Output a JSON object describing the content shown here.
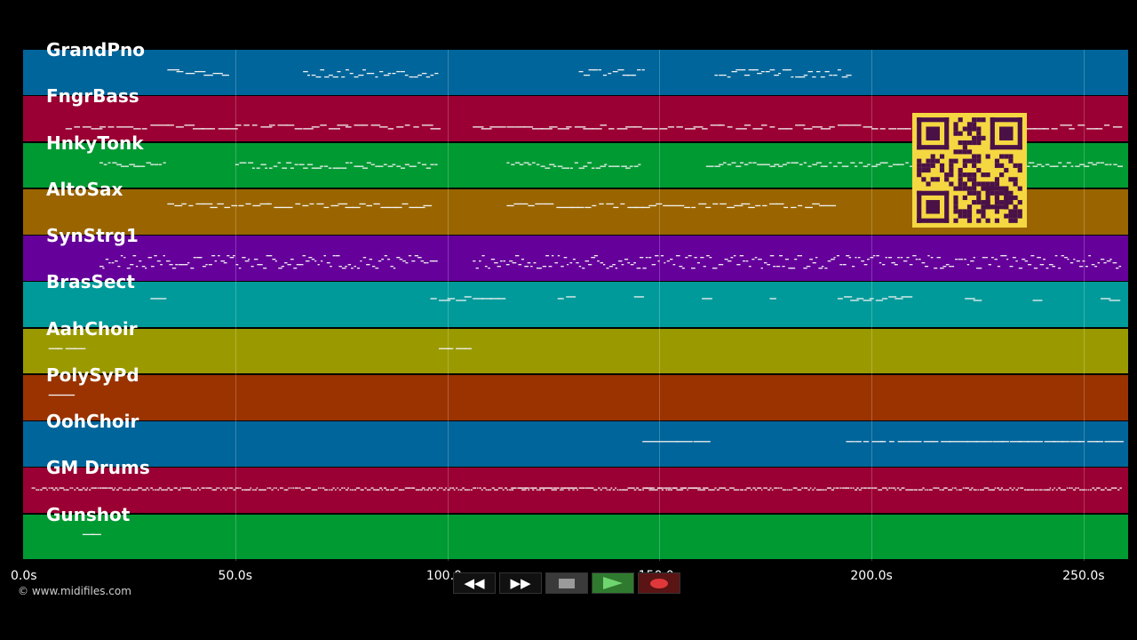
{
  "tracks": [
    {
      "name": "GrandPno",
      "color": "#00659a"
    },
    {
      "name": "FngrBass",
      "color": "#9a0033"
    },
    {
      "name": "HnkyTonk",
      "color": "#009a33"
    },
    {
      "name": "AltoSax",
      "color": "#9a6500"
    },
    {
      "name": "SynStrg1",
      "color": "#65009a"
    },
    {
      "name": "BrasSect",
      "color": "#009a9a"
    },
    {
      "name": "AahChoir",
      "color": "#9a9a00"
    },
    {
      "name": "PolySyPd",
      "color": "#9a3300"
    },
    {
      "name": "OohChoir",
      "color": "#00659a"
    },
    {
      "name": "GM Drums",
      "color": "#9a0033"
    },
    {
      "name": "Gunshot",
      "color": "#009a33"
    }
  ],
  "timeline": {
    "max_seconds": 260.5,
    "ticks": [
      {
        "value": 0,
        "label": "0.0s"
      },
      {
        "value": 50,
        "label": "50.0s"
      },
      {
        "value": 100,
        "label": "100.0s"
      },
      {
        "value": 150,
        "label": "150.0s"
      },
      {
        "value": 200,
        "label": "200.0s"
      },
      {
        "value": 250,
        "label": "250.0s"
      }
    ]
  },
  "copyright": "© www.midifiles.com",
  "transport": {
    "rewind_icon": "rewind-icon",
    "fast_forward_icon": "fast-forward-icon",
    "stop_icon": "stop-icon",
    "play_icon": "play-icon",
    "record_icon": "record-icon"
  }
}
